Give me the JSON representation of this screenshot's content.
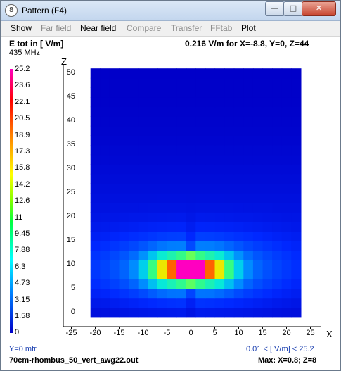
{
  "window": {
    "title": "Pattern    (F4)",
    "buttons": {
      "minimize": "—",
      "maximize": "□",
      "close": "✕"
    },
    "icon": "antenna-app-icon"
  },
  "menu": [
    {
      "label": "Show",
      "disabled": false
    },
    {
      "label": "Far field",
      "disabled": true
    },
    {
      "label": "Near field",
      "disabled": false
    },
    {
      "label": "Compare",
      "disabled": true
    },
    {
      "label": "Transfer",
      "disabled": true
    },
    {
      "label": "FFtab",
      "disabled": true
    },
    {
      "label": "Plot",
      "disabled": false
    }
  ],
  "header": {
    "quantity": "E  tot in [ V/m]",
    "frequency": "435 MHz",
    "cursor_readout": "0.216  V/m for X=-8.8, Y=0, Z=44"
  },
  "legend": {
    "values": [
      "25.2",
      "23.6",
      "22.1",
      "20.5",
      "18.9",
      "17.3",
      "15.8",
      "14.2",
      "12.6",
      "11",
      "9.45",
      "7.88",
      "6.3",
      "4.73",
      "3.15",
      "1.58",
      "0"
    ],
    "colors": {
      "low": "#0000c8",
      "mid": "#00ff00",
      "high": "#ff0000",
      "top": "#ff00c0"
    }
  },
  "axes": {
    "z_label": "Z",
    "x_label": "X",
    "z_ticks": [
      "50",
      "45",
      "40",
      "35",
      "30",
      "25",
      "20",
      "15",
      "10",
      "5",
      "0"
    ],
    "x_ticks": [
      "-25",
      "-20",
      "-15",
      "-10",
      "-5",
      "0",
      "5",
      "10",
      "15",
      "20",
      "25"
    ]
  },
  "footer": {
    "y_plane": "Y=0 mtr",
    "range": "0.01 < [ V/m] < 25.2",
    "filename": "70cm-rhombus_50_vert_awg22.out",
    "max_info": "Max: X=0.8; Z=8"
  },
  "chart_data": {
    "type": "heatmap",
    "title": "E  tot in [ V/m]",
    "xlabel": "X",
    "ylabel": "Z",
    "xlim": [
      -21,
      21.5
    ],
    "ylim": [
      -1,
      51
    ],
    "vrange": [
      0.01,
      25.2
    ],
    "max": {
      "x": 0.8,
      "z": 8,
      "value": 25.2
    }
  }
}
